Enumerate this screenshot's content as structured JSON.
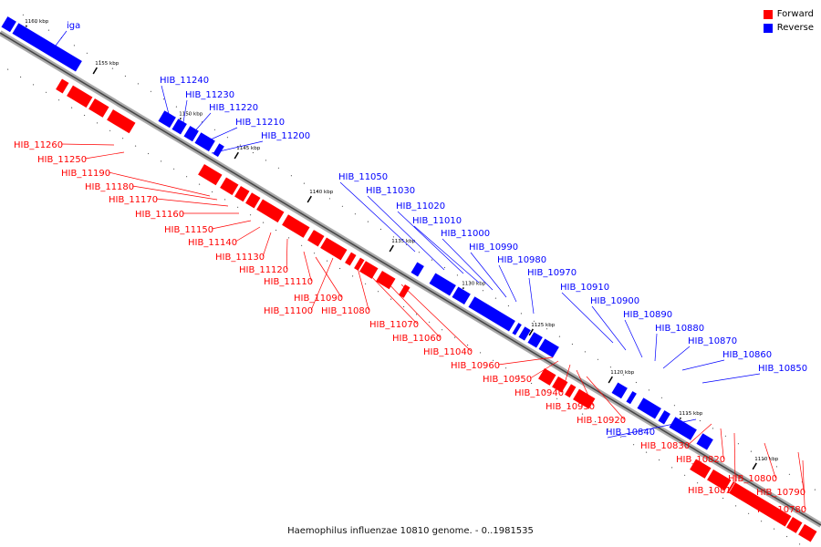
{
  "legend": {
    "forward_label": "Forward",
    "reverse_label": "Reverse",
    "forward_color": "#ff0000",
    "reverse_color": "#0000ff"
  },
  "caption": "Haemophilus influenzae 10810 genome. - 0..1981535",
  "kbp_ticks": [
    "1160 kbp",
    "1155 kbp",
    "1150 kbp",
    "1145 kbp",
    "1140 kbp",
    "1135 kbp",
    "1130 kbp",
    "1125 kbp",
    "1120 kbp",
    "1115 kbp",
    "1110 kbp"
  ],
  "genes_reverse": [
    "iga",
    "HIB_11240",
    "HIB_11230",
    "HIB_11220",
    "HIB_11210",
    "HIB_11200",
    "HIB_11050",
    "HIB_11030",
    "HIB_11020",
    "HIB_11010",
    "HIB_11000",
    "HIB_10990",
    "HIB_10980",
    "HIB_10970",
    "HIB_10910",
    "HIB_10900",
    "HIB_10890",
    "HIB_10880",
    "HIB_10870",
    "HIB_10860",
    "HIB_10850",
    "HIB_10840"
  ],
  "genes_forward": [
    "HIB_11260",
    "HIB_11250",
    "HIB_11190",
    "HIB_11180",
    "HIB_11170",
    "HIB_11160",
    "HIB_11150",
    "HIB_11140",
    "HIB_11130",
    "HIB_11120",
    "HIB_11110",
    "HIB_11090",
    "HIB_11100",
    "HIB_11080",
    "HIB_11070",
    "HIB_11060",
    "HIB_11040",
    "HIB_10960",
    "HIB_10950",
    "HIB_10940",
    "HIB_10930",
    "HIB_10920",
    "HIB_10830",
    "HIB_10820",
    "HIB_10810",
    "HIB_10800",
    "HIB_10790",
    "HIB_10780"
  ]
}
